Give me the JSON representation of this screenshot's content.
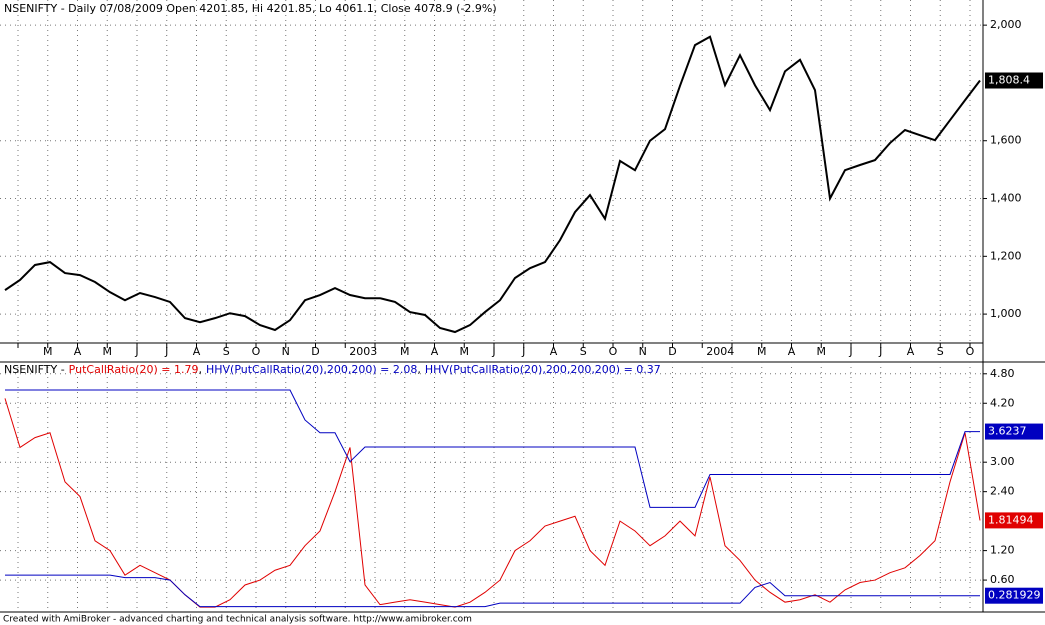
{
  "chart_data": [
    {
      "type": "price",
      "title": "NSENIFTY - Daily 07/08/2009 Open 4201.85, Hi 4201.85, Lo 4061.1, Close 4078.9 (-2.9%)",
      "month_labels": [
        null,
        "M",
        "A",
        "M",
        "J",
        "J",
        "A",
        "S",
        "O",
        "N",
        "D",
        "2003",
        null,
        "M",
        "A",
        "M",
        "J",
        "J",
        "A",
        "S",
        "O",
        "N",
        "D",
        "2004",
        null,
        "M",
        "A",
        "M",
        "J",
        "J",
        "A",
        "S",
        "O"
      ],
      "ylim": [
        900,
        2087
      ],
      "yticks": [
        {
          "value": 1000,
          "label": "1,000"
        },
        {
          "value": 1200,
          "label": "1,200"
        },
        {
          "value": 1400,
          "label": "1,400"
        },
        {
          "value": 1600,
          "label": "1,600"
        },
        {
          "value": 2000,
          "label": "2,000"
        }
      ],
      "grid": true,
      "series": [
        {
          "name": "NSENIFTY",
          "color": "#000000",
          "values": [
            1083,
            1118,
            1170,
            1180,
            1142,
            1135,
            1111,
            1076,
            1048,
            1073,
            1059,
            1042,
            986,
            972,
            986,
            1003,
            993,
            962,
            945,
            979,
            1048,
            1066,
            1090,
            1066,
            1055,
            1055,
            1042,
            1007,
            997,
            952,
            938,
            962,
            1007,
            1048,
            1125,
            1159,
            1180,
            1256,
            1353,
            1412,
            1330,
            1530,
            1498,
            1600,
            1640,
            1790,
            1931,
            1960,
            1792,
            1896,
            1792,
            1706,
            1840,
            1880,
            1775,
            1400,
            1498,
            1516,
            1533,
            1592,
            1637,
            1619,
            1602,
            1671,
            1740,
            1808.4
          ],
          "last_label": "1,808.4"
        }
      ]
    },
    {
      "type": "line",
      "title": "NSENIFTY -",
      "legend_separator": ",",
      "ylim": [
        -0.05,
        5.04
      ],
      "yticks": [
        {
          "value": 0.6,
          "label": "0.60"
        },
        {
          "value": 1.2,
          "label": "1.20"
        },
        {
          "value": 2.4,
          "label": "2.40"
        },
        {
          "value": 3.0,
          "label": "3.00"
        },
        {
          "value": 4.2,
          "label": "4.20"
        },
        {
          "value": 4.8,
          "label": "4.80"
        }
      ],
      "grid": true,
      "series": [
        {
          "name": "PutCallRatio(20) = 1.79",
          "color": "#e00000",
          "values": [
            4.3,
            3.3,
            3.5,
            3.6,
            2.6,
            2.3,
            1.4,
            1.2,
            0.7,
            0.9,
            0.75,
            0.6,
            0.3,
            0.05,
            0.05,
            0.2,
            0.5,
            0.6,
            0.8,
            0.9,
            1.3,
            1.6,
            2.4,
            3.3,
            0.5,
            0.1,
            0.15,
            0.2,
            0.15,
            0.1,
            0.05,
            0.15,
            0.35,
            0.6,
            1.2,
            1.4,
            1.7,
            1.8,
            1.9,
            1.2,
            0.9,
            1.8,
            1.6,
            1.3,
            1.5,
            1.8,
            1.5,
            2.7,
            1.3,
            1.0,
            0.6,
            0.35,
            0.15,
            0.2,
            0.3,
            0.15,
            0.4,
            0.55,
            0.6,
            0.75,
            0.85,
            1.1,
            1.4,
            2.6,
            3.6,
            1.81494
          ],
          "last_label": "1.81494"
        },
        {
          "name": "HHV(PutCallRatio(20),200,200) = 2.08",
          "color": "#0000c0",
          "values": [
            4.47,
            4.47,
            4.47,
            4.47,
            4.47,
            4.47,
            4.47,
            4.47,
            4.47,
            4.47,
            4.47,
            4.47,
            4.47,
            4.47,
            4.47,
            4.47,
            4.47,
            4.47,
            4.47,
            4.47,
            3.86,
            3.6,
            3.6,
            3.01,
            3.31,
            3.31,
            3.31,
            3.31,
            3.31,
            3.31,
            3.31,
            3.31,
            3.31,
            3.31,
            3.31,
            3.31,
            3.31,
            3.31,
            3.31,
            3.31,
            3.31,
            3.31,
            3.31,
            2.08,
            2.08,
            2.08,
            2.08,
            2.75,
            2.75,
            2.75,
            2.75,
            2.75,
            2.75,
            2.75,
            2.75,
            2.75,
            2.75,
            2.75,
            2.75,
            2.75,
            2.75,
            2.75,
            2.75,
            2.75,
            3.6237,
            3.6237
          ],
          "last_label": "3.6237"
        },
        {
          "name": "HHV(PutCallRatio(20),200,200,200) = 0.37",
          "color": "#0000c0",
          "values": [
            0.7,
            0.7,
            0.7,
            0.7,
            0.7,
            0.7,
            0.7,
            0.7,
            0.65,
            0.65,
            0.65,
            0.6,
            0.3,
            0.06,
            0.06,
            0.06,
            0.06,
            0.06,
            0.06,
            0.06,
            0.06,
            0.06,
            0.06,
            0.06,
            0.06,
            0.06,
            0.06,
            0.06,
            0.06,
            0.06,
            0.06,
            0.06,
            0.06,
            0.13,
            0.13,
            0.13,
            0.13,
            0.13,
            0.13,
            0.13,
            0.13,
            0.13,
            0.13,
            0.13,
            0.13,
            0.13,
            0.13,
            0.13,
            0.13,
            0.13,
            0.45,
            0.55,
            0.28,
            0.28,
            0.28,
            0.28,
            0.28,
            0.28,
            0.28,
            0.28,
            0.28,
            0.28,
            0.28,
            0.28,
            0.28,
            0.281929
          ],
          "last_label": "0.281929"
        }
      ]
    }
  ],
  "footer": "Created with AmiBroker - advanced charting and technical analysis software. http://www.amibroker.com"
}
